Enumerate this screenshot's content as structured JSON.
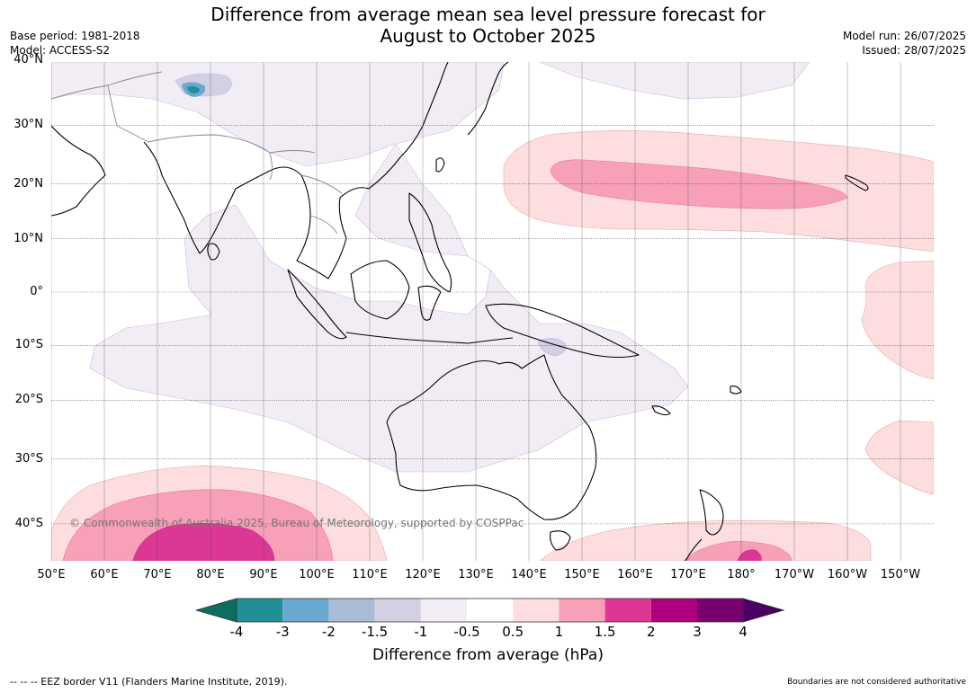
{
  "title_line1": "Difference from average mean sea level pressure forecast for",
  "title_line2": "August to October 2025",
  "base_period": "Base period: 1981-2018",
  "model": "Model: ACCESS-S2",
  "model_run": "Model run: 26/07/2025",
  "issued": "Issued: 28/07/2025",
  "copyright": "© Commonwealth of Australia 2025, Bureau of Meteorology, supported by COSPPac",
  "footer_left": "--  --  -- EEZ border V11 (Flanders Marine Institute, 2019).",
  "footer_right": "Boundaries are not considered authoritative",
  "latitudes": [
    {
      "value": 40,
      "label": "40°N"
    },
    {
      "value": 30,
      "label": "30°N"
    },
    {
      "value": 20,
      "label": "20°N"
    },
    {
      "value": 10,
      "label": "10°N"
    },
    {
      "value": 0,
      "label": "0°"
    },
    {
      "value": -10,
      "label": "10°S"
    },
    {
      "value": -20,
      "label": "20°S"
    },
    {
      "value": -30,
      "label": "30°S"
    },
    {
      "value": -40,
      "label": "40°S"
    }
  ],
  "longitudes": [
    {
      "value": 50,
      "label": "50°E"
    },
    {
      "value": 60,
      "label": "60°E"
    },
    {
      "value": 70,
      "label": "70°E"
    },
    {
      "value": 80,
      "label": "80°E"
    },
    {
      "value": 90,
      "label": "90°E"
    },
    {
      "value": 100,
      "label": "100°E"
    },
    {
      "value": 110,
      "label": "110°E"
    },
    {
      "value": 120,
      "label": "120°E"
    },
    {
      "value": 130,
      "label": "130°E"
    },
    {
      "value": 140,
      "label": "140°E"
    },
    {
      "value": 150,
      "label": "150°E"
    },
    {
      "value": 160,
      "label": "160°E"
    },
    {
      "value": 170,
      "label": "170°E"
    },
    {
      "value": 180,
      "label": "180°"
    },
    {
      "value": 190,
      "label": "170°W"
    },
    {
      "value": 200,
      "label": "160°W"
    },
    {
      "value": 210,
      "label": "150°W"
    }
  ],
  "colorbar": {
    "title": "Difference from average (hPa)",
    "ticks": [
      "-4",
      "-3",
      "-2",
      "-1.5",
      "-1",
      "-0.5",
      "0.5",
      "1",
      "1.5",
      "2",
      "3",
      "4"
    ],
    "under_color": "#0f6e5e",
    "over_color": "#4b0066",
    "bin_colors": [
      "#1e9096",
      "#6aa8d0",
      "#a9bcd8",
      "#d3d0e4",
      "#f2ecf5",
      "#ffffff",
      "#fdddde",
      "#f8a0b8",
      "#dd3795",
      "#ae007c",
      "#79006e"
    ]
  },
  "map_colors": {
    "land_outline": "#000000",
    "border": "#888888",
    "gridline": "#444444"
  }
}
